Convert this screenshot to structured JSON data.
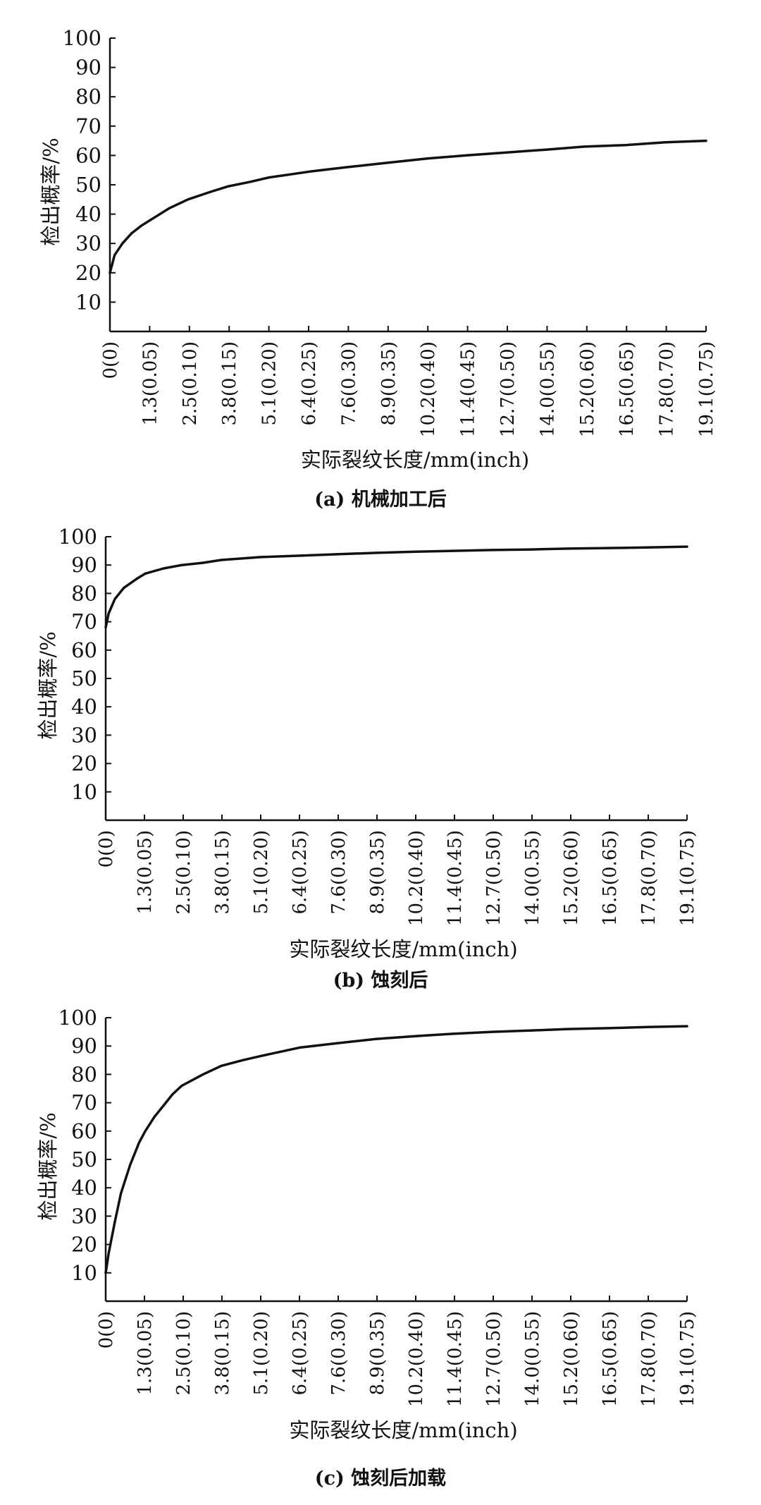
{
  "chart_data": [
    {
      "type": "line",
      "caption": "(a) 机械加工后",
      "xlabel": "实际裂纹长度/mm(inch)",
      "ylabel": "检出概率/%",
      "categories": [
        "0(0)",
        "1.3(0.05)",
        "2.5(0.10)",
        "3.8(0.15)",
        "5.1(0.20)",
        "6.4(0.25)",
        "7.6(0.30)",
        "8.9(0.35)",
        "10.2(0.40)",
        "11.4(0.45)",
        "12.7(0.50)",
        "14.0(0.55)",
        "15.2(0.60)",
        "16.5(0.65)",
        "17.8(0.70)",
        "19.1(0.75)"
      ],
      "yticks": [
        10,
        20,
        30,
        40,
        50,
        60,
        70,
        80,
        90,
        100
      ],
      "ylim": [
        0,
        100
      ],
      "xlim": [
        0,
        19.1
      ],
      "series": [
        {
          "x": [
            0,
            0.15,
            0.4,
            0.7,
            1.0,
            1.3,
            1.9,
            2.5,
            3.2,
            3.8,
            4.5,
            5.1,
            6.4,
            7.6,
            8.9,
            10.2,
            11.4,
            12.7,
            14.0,
            15.2,
            16.5,
            17.8,
            19.1
          ],
          "y": [
            20,
            26,
            30,
            33.5,
            36,
            38,
            42,
            45,
            47.5,
            49.5,
            51,
            52.5,
            54.5,
            56,
            57.5,
            59,
            60,
            61,
            62,
            63,
            63.5,
            64.5,
            65
          ]
        }
      ]
    },
    {
      "type": "line",
      "caption": "(b) 蚀刻后",
      "xlabel": "实际裂纹长度/mm(inch)",
      "ylabel": "检出概率/%",
      "categories": [
        "0(0)",
        "1.3(0.05)",
        "2.5(0.10)",
        "3.8(0.15)",
        "5.1(0.20)",
        "6.4(0.25)",
        "7.6(0.30)",
        "8.9(0.35)",
        "10.2(0.40)",
        "11.4(0.45)",
        "12.7(0.50)",
        "14.0(0.55)",
        "15.2(0.60)",
        "16.5(0.65)",
        "17.8(0.70)",
        "19.1(0.75)"
      ],
      "yticks": [
        10,
        20,
        30,
        40,
        50,
        60,
        70,
        80,
        90,
        100
      ],
      "ylim": [
        0,
        100
      ],
      "xlim": [
        0,
        19.1
      ],
      "series": [
        {
          "x": [
            0,
            0.1,
            0.3,
            0.6,
            1.0,
            1.3,
            1.9,
            2.5,
            3.2,
            3.8,
            5.1,
            6.4,
            7.6,
            8.9,
            10.2,
            11.4,
            12.7,
            14.0,
            15.2,
            16.5,
            17.8,
            19.1
          ],
          "y": [
            68,
            73,
            78,
            82,
            85,
            87,
            88.8,
            90,
            90.8,
            91.8,
            92.8,
            93.3,
            93.8,
            94.3,
            94.7,
            95,
            95.3,
            95.5,
            95.8,
            96,
            96.2,
            96.5
          ]
        }
      ]
    },
    {
      "type": "line",
      "caption": "(c) 蚀刻后加载",
      "xlabel": "实际裂纹长度/mm(inch)",
      "ylabel": "检出概率/%",
      "categories": [
        "0(0)",
        "1.3(0.05)",
        "2.5(0.10)",
        "3.8(0.15)",
        "5.1(0.20)",
        "6.4(0.25)",
        "7.6(0.30)",
        "8.9(0.35)",
        "10.2(0.40)",
        "11.4(0.45)",
        "12.7(0.50)",
        "14.0(0.55)",
        "15.2(0.60)",
        "16.5(0.65)",
        "17.8(0.70)",
        "19.1(0.75)"
      ],
      "yticks": [
        10,
        20,
        30,
        40,
        50,
        60,
        70,
        80,
        90,
        100
      ],
      "ylim": [
        0,
        100
      ],
      "xlim": [
        0,
        19.1
      ],
      "series": [
        {
          "x": [
            0,
            0.1,
            0.3,
            0.5,
            0.8,
            1.1,
            1.3,
            1.6,
            1.9,
            2.2,
            2.5,
            3.2,
            3.8,
            4.5,
            5.1,
            6.4,
            7.6,
            8.9,
            10.2,
            11.4,
            12.7,
            14.0,
            15.2,
            16.5,
            17.8,
            19.1
          ],
          "y": [
            10,
            17,
            28,
            38,
            48,
            56,
            60,
            65,
            69,
            73,
            76,
            80,
            83,
            85,
            86.5,
            89.5,
            91,
            92.5,
            93.5,
            94.3,
            95,
            95.5,
            96,
            96.3,
            96.7,
            97
          ]
        }
      ]
    }
  ]
}
